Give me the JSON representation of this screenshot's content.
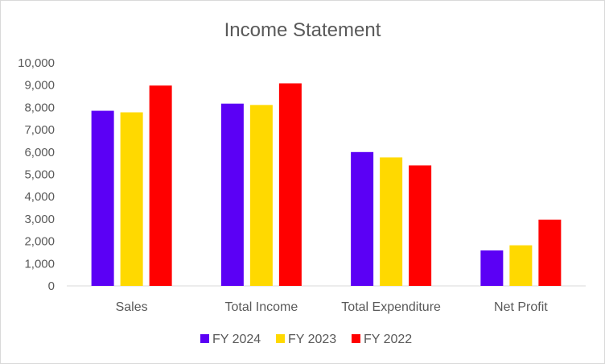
{
  "chart_data": {
    "type": "bar",
    "title": "Income Statement",
    "xlabel": "",
    "ylabel": "",
    "categories": [
      "Sales",
      "Total Income",
      "Total Expenditure",
      "Net Profit"
    ],
    "series": [
      {
        "name": "FY 2024",
        "color": "#5B00F5",
        "values": [
          7850,
          8170,
          6000,
          1590
        ]
      },
      {
        "name": "FY 2023",
        "color": "#FFD900",
        "values": [
          7780,
          8110,
          5760,
          1820
        ]
      },
      {
        "name": "FY 2022",
        "color": "#FF0000",
        "values": [
          8980,
          9080,
          5400,
          2970
        ]
      }
    ],
    "ylim": [
      0,
      10000
    ],
    "yticks": [
      0,
      1000,
      2000,
      3000,
      4000,
      5000,
      6000,
      7000,
      8000,
      9000,
      10000
    ],
    "ytick_labels": [
      "0",
      "1,000",
      "2,000",
      "3,000",
      "4,000",
      "5,000",
      "6,000",
      "7,000",
      "8,000",
      "9,000",
      "10,000"
    ],
    "grid": false,
    "legend_position": "bottom"
  }
}
